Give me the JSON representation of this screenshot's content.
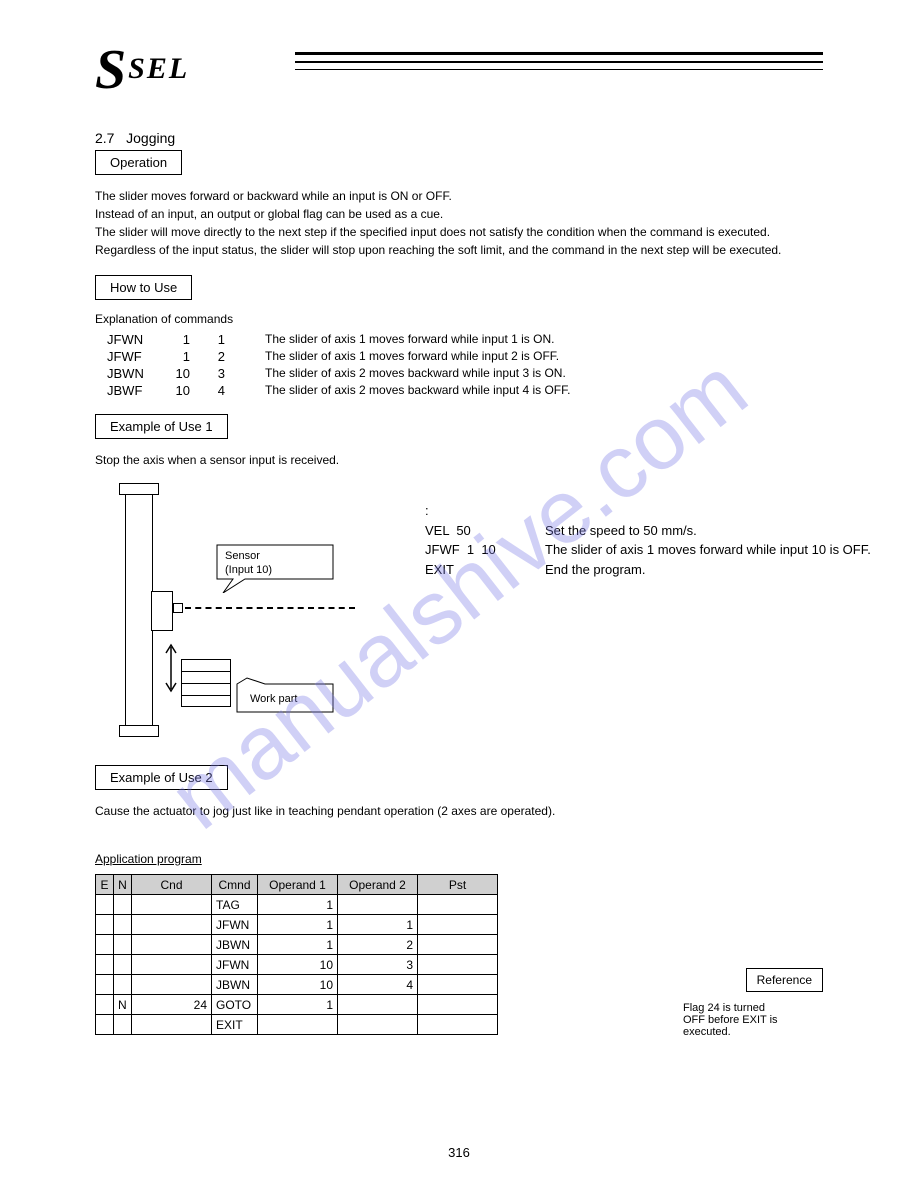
{
  "logo": {
    "s": "S",
    "sel": "SEL"
  },
  "section": {
    "number": "2.7",
    "title": "Jogging",
    "box_label": "Operation",
    "intro": "The slider moves forward or backward while an input is ON or OFF.\nInstead of an input, an output or global flag can be used as a cue.\nThe slider will move directly to the next step if the specified input does not satisfy the condition when the command is executed.\nRegardless of the input status, the slider will stop upon reaching the soft limit, and the command in the next step will be executed.",
    "howto_label": "How to Use",
    "explain": "Explanation of commands",
    "rows": [
      {
        "cmd": "JFWN",
        "a": "1",
        "b": "1",
        "desc": "The slider of axis 1 moves forward while input 1 is ON."
      },
      {
        "cmd": "JFWF",
        "a": "1",
        "b": "2",
        "desc": "The slider of axis 1 moves forward while input 2 is OFF."
      },
      {
        "cmd": "JBWN",
        "a": "10",
        "b": "3",
        "desc": "The slider of axis 2 moves backward while input 3 is ON."
      },
      {
        "cmd": "JBWF",
        "a": "10",
        "b": "4",
        "desc": "The slider of axis 2 moves backward while input 4 is OFF."
      }
    ],
    "ex1_label": "Example of Use 1",
    "ex1_text": "Stop the axis when a sensor input is received.",
    "callout_sensor": "Sensor\n(Input 10)",
    "callout_work": "Work part",
    "code": [
      ":",
      "VEL  50",
      "JFWF  1  10",
      "EXIT"
    ],
    "code_comments": [
      "",
      "Set the speed to 50 mm/s.",
      "The slider of axis 1 moves forward while input 10 is OFF.",
      "End the program."
    ],
    "ex2_label": "Example of Use 2",
    "ex2_text": "Cause the actuator to jog just like in teaching pendant operation (2 axes are operated).",
    "app_title": "Application program"
  },
  "table": {
    "headers": [
      "E",
      "N",
      "Cnd",
      "Cmnd",
      "Operand 1",
      "Operand 2",
      "Pst"
    ],
    "rows": [
      [
        "",
        "",
        "",
        "TAG",
        "1",
        "",
        ""
      ],
      [
        "",
        "",
        "",
        "JFWN",
        "1",
        "1",
        ""
      ],
      [
        "",
        "",
        "",
        "JBWN",
        "1",
        "2",
        ""
      ],
      [
        "",
        "",
        "",
        "JFWN",
        "10",
        "3",
        ""
      ],
      [
        "",
        "",
        "",
        "JBWN",
        "10",
        "4",
        ""
      ],
      [
        "",
        "N",
        "24",
        "GOTO",
        "1",
        "",
        ""
      ],
      [
        "",
        "",
        "",
        "EXIT",
        "",
        "",
        ""
      ]
    ]
  },
  "reference": "Reference",
  "flag_note": "Flag 24 is turned\nOFF before EXIT is\nexecuted.",
  "page_number": "316",
  "watermark": "manualshive.com",
  "colors": {
    "header_bg": "#d0d0d0",
    "watermark": "rgba(120,120,230,0.35)"
  }
}
